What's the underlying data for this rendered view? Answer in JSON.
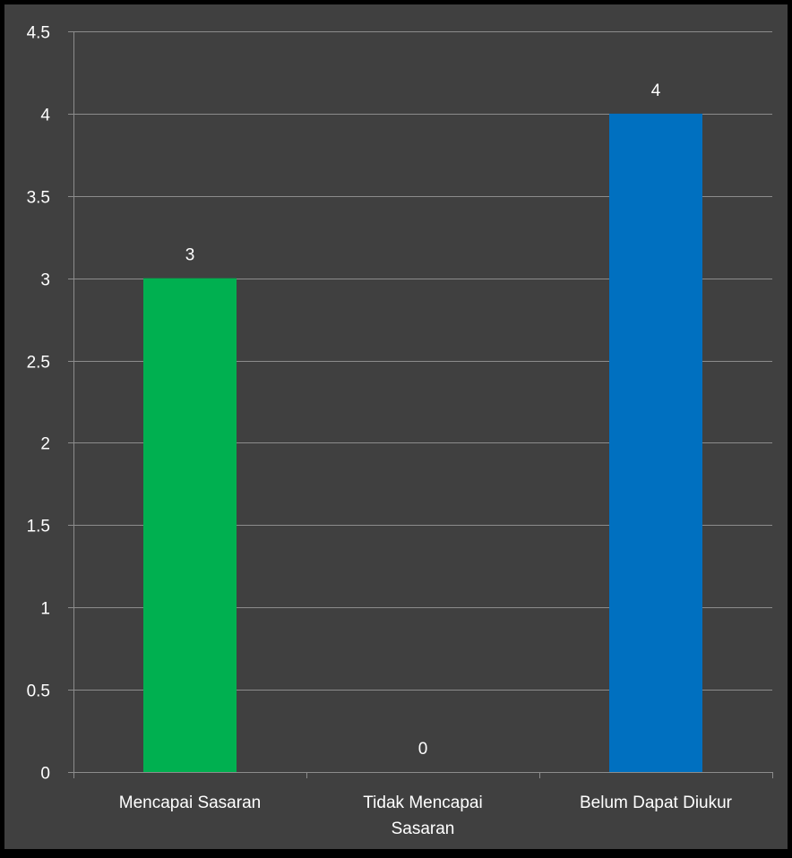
{
  "colors": {
    "background": "#000000",
    "plot_area": "#404040",
    "gridline": "#8c8c8c",
    "axis": "#8c8c8c",
    "text": "#ffffff"
  },
  "chart_data": {
    "type": "bar",
    "title": "",
    "xlabel": "",
    "ylabel": "",
    "categories": [
      [
        "Mencapai Sasaran"
      ],
      [
        "Tidak Mencapai",
        "Sasaran"
      ],
      [
        "Belum Dapat Diukur"
      ]
    ],
    "values": [
      3,
      0,
      4
    ],
    "data_labels": [
      "3",
      "0",
      "4"
    ],
    "bar_colors": [
      "#00b050",
      "#00b050",
      "#0070c0"
    ],
    "ylim": [
      0,
      4.5
    ],
    "yticks": [
      0,
      0.5,
      1,
      1.5,
      2,
      2.5,
      3,
      3.5,
      4,
      4.5
    ],
    "ytick_labels": [
      "0",
      "0.5",
      "1",
      "1.5",
      "2",
      "2.5",
      "3",
      "3.5",
      "4",
      "4.5"
    ],
    "grid": true,
    "legend": "none"
  }
}
